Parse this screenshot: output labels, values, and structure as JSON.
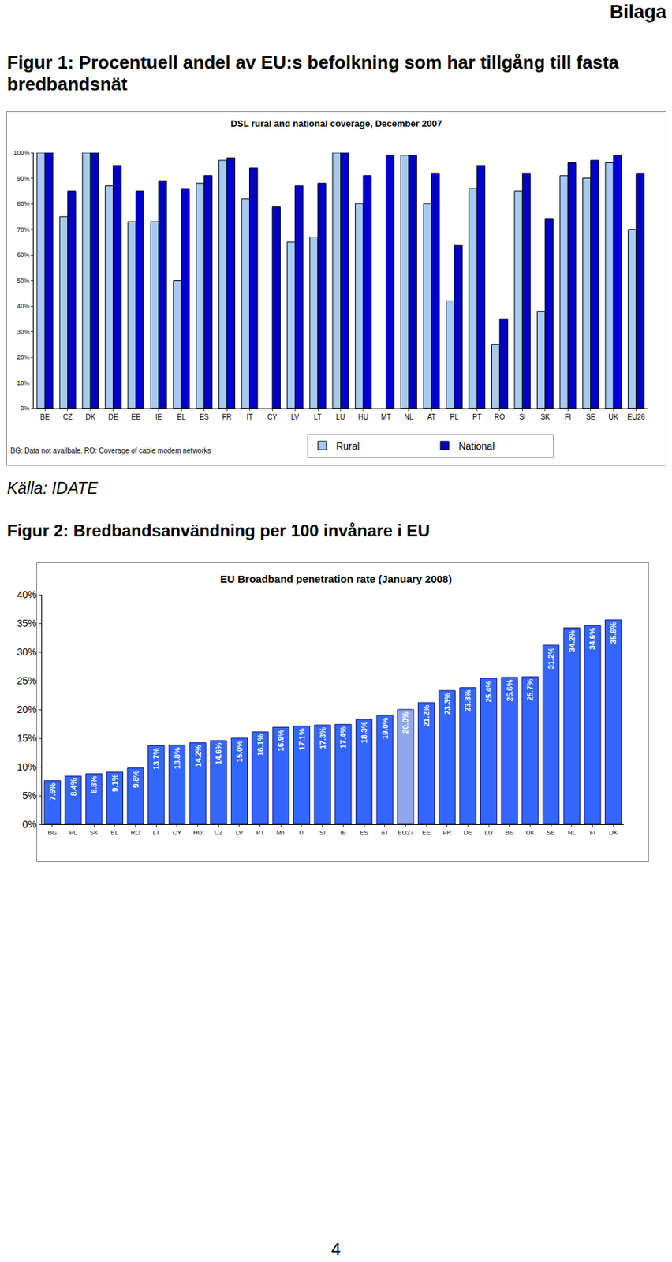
{
  "header": "Bilaga",
  "figure1": {
    "title": "Figur 1: Procentuell andel av EU:s befolkning som har tillgång till fasta bredbandsnät",
    "source": "Källa: IDATE"
  },
  "figure2": {
    "title": "Figur 2: Bredbandsanvändning per 100 invånare i EU"
  },
  "page_number": "4",
  "chart_data": [
    {
      "type": "bar",
      "title": "DSL rural and national coverage, December 2007",
      "categories": [
        "BE",
        "CZ",
        "DK",
        "DE",
        "EE",
        "IE",
        "EL",
        "ES",
        "FR",
        "IT",
        "CY",
        "LV",
        "LT",
        "LU",
        "HU",
        "MT",
        "NL",
        "AT",
        "PL",
        "PT",
        "RO",
        "SI",
        "SK",
        "FI",
        "SE",
        "UK",
        "EU26"
      ],
      "series": [
        {
          "name": "Rural",
          "color": "#a6caf0",
          "values": [
            100,
            75,
            100,
            87,
            73,
            73,
            50,
            88,
            97,
            82,
            null,
            65,
            67,
            100,
            80,
            null,
            99,
            80,
            42,
            86,
            25,
            85,
            38,
            91,
            90,
            96,
            70
          ]
        },
        {
          "name": "National",
          "color": "#0000cc",
          "values": [
            100,
            85,
            100,
            95,
            85,
            89,
            86,
            91,
            98,
            94,
            79,
            87,
            88,
            100,
            91,
            99,
            99,
            92,
            64,
            95,
            35,
            92,
            74,
            96,
            97,
            99,
            92
          ]
        }
      ],
      "ylim": [
        0,
        100
      ],
      "yticks": [
        {
          "value": 0,
          "label": "0%"
        },
        {
          "value": 10,
          "label": "10%"
        },
        {
          "value": 20,
          "label": "20%"
        },
        {
          "value": 30,
          "label": "30%"
        },
        {
          "value": 40,
          "label": "40%"
        },
        {
          "value": 50,
          "label": "50%"
        },
        {
          "value": 60,
          "label": "60%"
        },
        {
          "value": 70,
          "label": "70%"
        },
        {
          "value": 80,
          "label": "80%"
        },
        {
          "value": 90,
          "label": "90%"
        },
        {
          "value": 100,
          "label": "100%"
        }
      ],
      "grid": false,
      "legend": "bottom right",
      "data_labels": false,
      "annotations": [
        "BG: Data not availbale. RO: Coverage of cable modem networks"
      ]
    },
    {
      "type": "bar",
      "title": "EU Broadband penetration rate (January 2008)",
      "categories": [
        "BG",
        "PL",
        "SK",
        "EL",
        "RO",
        "LT",
        "CY",
        "HU",
        "CZ",
        "LV",
        "PT",
        "MT",
        "IT",
        "SI",
        "IE",
        "ES",
        "AT",
        "EU27",
        "EE",
        "FR",
        "DE",
        "LU",
        "BE",
        "UK",
        "SE",
        "NL",
        "FI",
        "DK"
      ],
      "values": [
        7.6,
        8.4,
        8.8,
        9.1,
        9.8,
        13.7,
        13.8,
        14.2,
        14.6,
        15.0,
        16.1,
        16.9,
        17.1,
        17.3,
        17.4,
        18.3,
        19.0,
        20.0,
        21.2,
        23.3,
        23.8,
        25.4,
        25.6,
        25.7,
        31.2,
        34.2,
        34.6,
        35.6
      ],
      "value_labels": [
        "7.6%",
        "8.4%",
        "8.8%",
        "9.1%",
        "9.8%",
        "13.7%",
        "13.8%",
        "14.2%",
        "14.6%",
        "15.0%",
        "16.1%",
        "16.9%",
        "17.1%",
        "17.3%",
        "17.4%",
        "18.3%",
        "19.0%",
        "20.0%",
        "21.2%",
        "23.3%",
        "23.8%",
        "25.4%",
        "25.6%",
        "25.7%",
        "31.2%",
        "34.2%",
        "34.6%",
        "35.6%"
      ],
      "colors": [
        "#3366ff",
        "#3366ff",
        "#3366ff",
        "#3366ff",
        "#3366ff",
        "#3366ff",
        "#3366ff",
        "#3366ff",
        "#3366ff",
        "#3366ff",
        "#3366ff",
        "#3366ff",
        "#3366ff",
        "#3366ff",
        "#3366ff",
        "#3366ff",
        "#3366ff",
        "#8fa8ea",
        "#3366ff",
        "#3366ff",
        "#3366ff",
        "#3366ff",
        "#3366ff",
        "#3366ff",
        "#3366ff",
        "#3366ff",
        "#3366ff",
        "#3366ff"
      ],
      "ylim": [
        0,
        40
      ],
      "yticks": [
        {
          "value": 0,
          "label": "0%"
        },
        {
          "value": 5,
          "label": "5%"
        },
        {
          "value": 10,
          "label": "10%"
        },
        {
          "value": 15,
          "label": "15%"
        },
        {
          "value": 20,
          "label": "20%"
        },
        {
          "value": 25,
          "label": "25%"
        },
        {
          "value": 30,
          "label": "30%"
        },
        {
          "value": 35,
          "label": "35%"
        },
        {
          "value": 40,
          "label": "40%"
        }
      ],
      "grid": false,
      "data_labels": true
    }
  ]
}
